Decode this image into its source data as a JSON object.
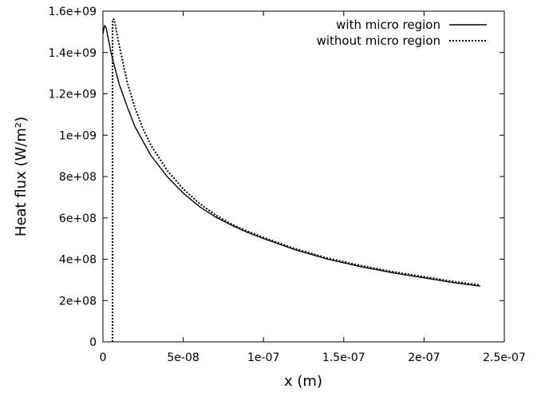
{
  "chart_data": {
    "type": "line",
    "title": "",
    "xlabel": "x (m)",
    "ylabel": "Heat flux (W/m²)",
    "xlim": [
      0,
      2.5e-07
    ],
    "ylim": [
      0,
      1600000000.0
    ],
    "x_ticks": [
      {
        "value": 0,
        "label": "0"
      },
      {
        "value": 5e-08,
        "label": "5e-08"
      },
      {
        "value": 1e-07,
        "label": "1e-07"
      },
      {
        "value": 1.5e-07,
        "label": "1.5e-07"
      },
      {
        "value": 2e-07,
        "label": "2e-07"
      },
      {
        "value": 2.5e-07,
        "label": "2.5e-07"
      }
    ],
    "y_ticks": [
      {
        "value": 0,
        "label": "0"
      },
      {
        "value": 200000000.0,
        "label": "2e+08"
      },
      {
        "value": 400000000.0,
        "label": "4e+08"
      },
      {
        "value": 600000000.0,
        "label": "6e+08"
      },
      {
        "value": 800000000.0,
        "label": "8e+08"
      },
      {
        "value": 1000000000.0,
        "label": "1e+09"
      },
      {
        "value": 1200000000.0,
        "label": "1.2e+09"
      },
      {
        "value": 1400000000.0,
        "label": "1.4e+09"
      },
      {
        "value": 1600000000.0,
        "label": "1.6e+09"
      }
    ],
    "grid": false,
    "legend_position": "top-right",
    "series": [
      {
        "name": "with micro region",
        "style": "solid",
        "color": "#000000",
        "points": [
          [
            0,
            1490000000.0
          ],
          [
            1e-09,
            1530000000.0
          ],
          [
            2e-09,
            1520000000.0
          ],
          [
            3e-09,
            1480000000.0
          ],
          [
            5e-09,
            1400000000.0
          ],
          [
            1e-08,
            1250000000.0
          ],
          [
            1.5e-08,
            1140000000.0
          ],
          [
            2e-08,
            1040000000.0
          ],
          [
            3e-08,
            900000000.0
          ],
          [
            4e-08,
            800000000.0
          ],
          [
            5e-08,
            720000000.0
          ],
          [
            6e-08,
            655000000.0
          ],
          [
            7e-08,
            605000000.0
          ],
          [
            8e-08,
            565000000.0
          ],
          [
            9e-08,
            530000000.0
          ],
          [
            1e-07,
            500000000.0
          ],
          [
            1.2e-07,
            445000000.0
          ],
          [
            1.4e-07,
            400000000.0
          ],
          [
            1.6e-07,
            365000000.0
          ],
          [
            1.8e-07,
            335000000.0
          ],
          [
            2e-07,
            310000000.0
          ],
          [
            2.2e-07,
            285000000.0
          ],
          [
            2.35e-07,
            270000000.0
          ]
        ]
      },
      {
        "name": "without micro region",
        "style": "dotted",
        "color": "#000000",
        "points": [
          [
            6e-09,
            0
          ],
          [
            6e-09,
            1560000000.0
          ],
          [
            7e-09,
            1560000000.0
          ],
          [
            8e-09,
            1520000000.0
          ],
          [
            1e-08,
            1440000000.0
          ],
          [
            1.5e-08,
            1260000000.0
          ],
          [
            2e-08,
            1130000000.0
          ],
          [
            2.5e-08,
            1030000000.0
          ],
          [
            3e-08,
            950000000.0
          ],
          [
            4e-08,
            830000000.0
          ],
          [
            5e-08,
            740000000.0
          ],
          [
            6e-08,
            670000000.0
          ],
          [
            7e-08,
            615000000.0
          ],
          [
            8e-08,
            570000000.0
          ],
          [
            9e-08,
            535000000.0
          ],
          [
            1e-07,
            505000000.0
          ],
          [
            1.2e-07,
            450000000.0
          ],
          [
            1.4e-07,
            405000000.0
          ],
          [
            1.6e-07,
            370000000.0
          ],
          [
            1.8e-07,
            340000000.0
          ],
          [
            2e-07,
            315000000.0
          ],
          [
            2.2e-07,
            290000000.0
          ],
          [
            2.35e-07,
            275000000.0
          ]
        ]
      }
    ]
  }
}
